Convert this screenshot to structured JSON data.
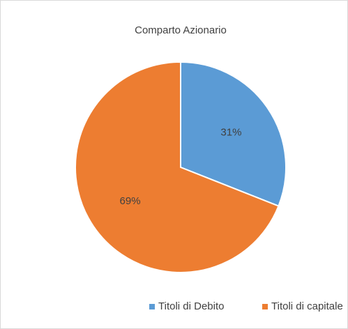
{
  "chart_data": {
    "type": "pie",
    "title": "Comparto Azionario",
    "categories": [
      "Titoli di Debito",
      "Titoli di capitale"
    ],
    "values": [
      31,
      69
    ],
    "value_labels": [
      "31%",
      "69%"
    ],
    "colors": [
      "#5b9bd5",
      "#ed7d31"
    ],
    "legend": "bottom"
  }
}
